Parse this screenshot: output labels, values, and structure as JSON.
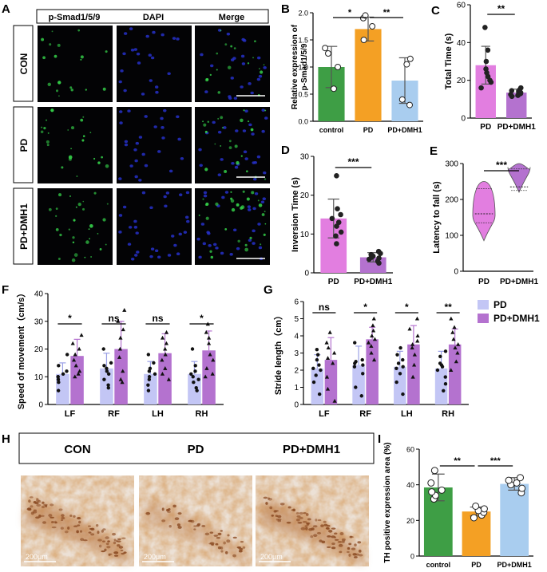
{
  "figure": {
    "panel_labels": [
      "A",
      "B",
      "C",
      "D",
      "E",
      "F",
      "G",
      "H",
      "I"
    ],
    "A": {
      "channels": [
        {
          "label": "p-Smad1/5/9",
          "color": "#2fbf2f"
        },
        {
          "label": "DAPI",
          "color": "#2b2bd6"
        },
        {
          "label": "Merge",
          "color": "#000000"
        }
      ],
      "rows": [
        "CON",
        "PD",
        "PD+DMH1"
      ]
    },
    "H": {
      "columns": [
        "CON",
        "PD",
        "PD+DMH1"
      ],
      "scale_label": "200μm"
    }
  },
  "colors": {
    "green": "#3e9e45",
    "orange": "#f4a024",
    "lightblue": "#a9cdef",
    "pink": "#e27ee0",
    "purple": "#b472cf",
    "lavender": "#c3c6f5"
  },
  "chart_data": [
    {
      "id": "B",
      "type": "bar",
      "categories": [
        "control",
        "PD",
        "PD+DMH1"
      ],
      "values": [
        1.0,
        1.7,
        0.75
      ],
      "errors": [
        0.38,
        0.22,
        0.42
      ],
      "points": [
        [
          0.6,
          1.0,
          1.25,
          1.35
        ],
        [
          1.5,
          1.75,
          1.9,
          1.95
        ],
        [
          0.3,
          0.4,
          1.05,
          1.15
        ]
      ],
      "colors": [
        "#3e9e45",
        "#f4a024",
        "#a9cdef"
      ],
      "ylabel": "Relative expression of p-Smad1/5/9",
      "ylim": [
        0,
        2
      ],
      "yticks": [
        0.0,
        0.5,
        1.0,
        1.5,
        2.0
      ],
      "tick_labels": [
        "0.0",
        "0.5",
        "1.0",
        "1.5",
        "2.0"
      ],
      "significance": [
        {
          "from": 0,
          "to": 1,
          "label": "*"
        },
        {
          "from": 1,
          "to": 2,
          "label": "**"
        }
      ]
    },
    {
      "id": "C",
      "type": "bar",
      "categories": [
        "PD",
        "PD+DMH1"
      ],
      "values": [
        28,
        13.5
      ],
      "errors": [
        10,
        1.8
      ],
      "points": [
        [
          16,
          19,
          20,
          22,
          24,
          26,
          30,
          36,
          48
        ],
        [
          11.5,
          12,
          12.5,
          13,
          13.5,
          14,
          14.5,
          15,
          16
        ]
      ],
      "colors": [
        "#e27ee0",
        "#b472cf"
      ],
      "ylabel": "Total Time (s)",
      "ylim": [
        0,
        60
      ],
      "yticks": [
        0,
        20,
        40,
        60
      ],
      "tick_labels": [
        "0",
        "20",
        "40",
        "60"
      ],
      "significance": [
        {
          "from": 0,
          "to": 1,
          "label": "**"
        }
      ]
    },
    {
      "id": "D",
      "type": "bar",
      "categories": [
        "PD",
        "PD+DMH1"
      ],
      "values": [
        14,
        4
      ],
      "errors": [
        5,
        1.2
      ],
      "points": [
        [
          7.5,
          9.5,
          10.5,
          12,
          13,
          14,
          15,
          16.5,
          25
        ],
        [
          2.5,
          3,
          3.5,
          3.8,
          4,
          4.3,
          4.7,
          5,
          5.5
        ]
      ],
      "colors": [
        "#e27ee0",
        "#b472cf"
      ],
      "ylabel": "Inversion Time  (s)",
      "ylim": [
        0,
        30
      ],
      "yticks": [
        0,
        10,
        20,
        30
      ],
      "tick_labels": [
        "0",
        "10",
        "20",
        "30"
      ],
      "significance": [
        {
          "from": 0,
          "to": 1,
          "label": "***"
        }
      ]
    },
    {
      "id": "E",
      "type": "violin",
      "categories": [
        "PD",
        "PD+DMH1"
      ],
      "ranges": [
        [
          85,
          250
        ],
        [
          220,
          300
        ]
      ],
      "medians": [
        160,
        235
      ],
      "quartiles": [
        [
          135,
          230
        ],
        [
          225,
          285
        ]
      ],
      "colors": [
        "#e27ee0",
        "#b472cf"
      ],
      "ylabel": "Latency to fall (s)",
      "ylim": [
        0,
        300
      ],
      "yticks": [
        0,
        100,
        200,
        300
      ],
      "tick_labels": [
        "0",
        "100",
        "200",
        "300"
      ],
      "significance": [
        {
          "from": 0,
          "to": 1,
          "label": "***"
        }
      ]
    },
    {
      "id": "F",
      "type": "bar",
      "categories": [
        "LF",
        "RF",
        "LH",
        "RH"
      ],
      "series": [
        {
          "name": "PD",
          "values": [
            11,
            13,
            11,
            11
          ],
          "errors": [
            4,
            5.5,
            4.5,
            4.5
          ],
          "points": [
            [
              5,
              8,
              9,
              10,
              10,
              11,
              12,
              14,
              18
            ],
            [
              6,
              7,
              9,
              11,
              12,
              13,
              14,
              15,
              20
            ],
            [
              5,
              7,
              9,
              10,
              11,
              12,
              13,
              15,
              18
            ],
            [
              5,
              6,
              8,
              9,
              10,
              11,
              12,
              14,
              20
            ]
          ]
        },
        {
          "name": "PD+DMH1",
          "values": [
            17.5,
            20,
            18.5,
            19.5
          ],
          "errors": [
            6,
            10,
            7,
            7
          ],
          "points": [
            [
              10,
              11,
              12,
              14,
              16,
              18,
              20,
              22,
              25
            ],
            [
              8,
              9,
              12,
              17,
              20,
              24,
              27,
              30,
              34
            ],
            [
              9,
              11,
              13,
              16,
              18,
              20,
              22,
              24,
              26
            ],
            [
              10,
              11,
              13,
              16,
              18,
              22,
              24,
              26,
              29
            ]
          ]
        }
      ],
      "colors": [
        "#c3c6f5",
        "#b472cf"
      ],
      "ylabel": "Speed of movement（cm/s）",
      "ylim": [
        0,
        40
      ],
      "yticks": [
        0,
        10,
        20,
        30,
        40
      ],
      "tick_labels": [
        "0",
        "10",
        "20",
        "30",
        "40"
      ],
      "significance": [
        {
          "group": 0,
          "label": "*"
        },
        {
          "group": 1,
          "label": "ns"
        },
        {
          "group": 2,
          "label": "ns"
        },
        {
          "group": 3,
          "label": "*"
        }
      ]
    },
    {
      "id": "G",
      "type": "bar",
      "categories": [
        "LF",
        "RF",
        "LH",
        "RH"
      ],
      "series": [
        {
          "name": "PD",
          "values": [
            2.1,
            2.3,
            2.2,
            2.1
          ],
          "errors": [
            0.8,
            1.1,
            0.9,
            1.0
          ],
          "points": [
            [
              0.6,
              1.3,
              1.7,
              2.0,
              2.1,
              2.3,
              2.6,
              2.9,
              3.2
            ],
            [
              0.5,
              1.0,
              1.8,
              2.2,
              2.3,
              2.4,
              2.5,
              2.6,
              3.6
            ],
            [
              0.6,
              1.3,
              1.8,
              2.1,
              2.2,
              2.4,
              2.6,
              2.9,
              3.3
            ],
            [
              0.8,
              1.2,
              1.6,
              2.0,
              2.2,
              2.3,
              2.4,
              2.8,
              3.1
            ]
          ]
        },
        {
          "name": "PD+DMH1",
          "values": [
            2.6,
            3.8,
            3.5,
            3.5
          ],
          "errors": [
            1.3,
            0.7,
            1.1,
            0.9
          ],
          "points": [
            [
              0.2,
              0.9,
              1.6,
              2.4,
              2.7,
              3.0,
              3.3,
              3.6,
              4.2
            ],
            [
              2.6,
              3.0,
              3.4,
              3.6,
              3.8,
              4.0,
              4.3,
              4.6,
              5.0
            ],
            [
              1.6,
              2.3,
              2.9,
              3.3,
              3.5,
              3.7,
              4.0,
              4.4,
              5.0
            ],
            [
              2.0,
              2.5,
              3.0,
              3.3,
              3.5,
              3.8,
              4.2,
              4.5,
              5.0
            ]
          ]
        }
      ],
      "colors": [
        "#c3c6f5",
        "#b472cf"
      ],
      "ylabel": "Stride length（cm）",
      "ylim": [
        0,
        6
      ],
      "yticks": [
        0,
        1,
        2,
        3,
        4,
        5,
        6
      ],
      "tick_labels": [
        "0",
        "1",
        "2",
        "3",
        "4",
        "5",
        "6"
      ],
      "legend": [
        "PD",
        "PD+DMH1"
      ],
      "significance": [
        {
          "group": 0,
          "label": "ns"
        },
        {
          "group": 1,
          "label": "*"
        },
        {
          "group": 2,
          "label": "*"
        },
        {
          "group": 3,
          "label": "**"
        }
      ]
    },
    {
      "id": "I",
      "type": "bar",
      "categories": [
        "control",
        "PD",
        "PD+DMH1"
      ],
      "values": [
        38.5,
        25,
        40.5
      ],
      "errors": [
        7.5,
        2.5,
        3.5
      ],
      "points": [
        [
          32,
          34,
          36,
          37,
          41,
          48
        ],
        [
          21.5,
          23,
          24.5,
          25.5,
          26.5,
          28
        ],
        [
          35.5,
          38,
          40,
          41,
          42.5,
          44
        ]
      ],
      "colors": [
        "#3e9e45",
        "#f4a024",
        "#a9cdef"
      ],
      "ylabel": "TH positive expression area (%)",
      "ylim": [
        0,
        60
      ],
      "yticks": [
        0,
        20,
        40,
        60
      ],
      "tick_labels": [
        "0",
        "20",
        "40",
        "60"
      ],
      "significance": [
        {
          "from": 0,
          "to": 1,
          "label": "**"
        },
        {
          "from": 1,
          "to": 2,
          "label": "***"
        }
      ]
    }
  ]
}
